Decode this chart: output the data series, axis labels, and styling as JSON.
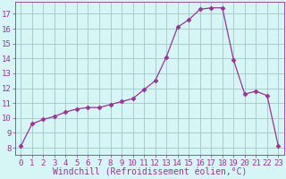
{
  "x": [
    0,
    1,
    2,
    3,
    4,
    5,
    6,
    7,
    8,
    9,
    10,
    11,
    12,
    13,
    14,
    15,
    16,
    17,
    18,
    19,
    20,
    21,
    22,
    23
  ],
  "y": [
    8.1,
    9.6,
    9.9,
    10.1,
    10.4,
    10.6,
    10.7,
    10.7,
    10.9,
    11.1,
    11.3,
    11.9,
    12.5,
    14.1,
    16.1,
    16.6,
    17.3,
    17.4,
    17.4,
    13.9,
    11.6,
    11.8,
    11.5,
    8.1
  ],
  "xlim": [
    -0.5,
    23.5
  ],
  "ylim": [
    7.5,
    17.8
  ],
  "xticks": [
    0,
    1,
    2,
    3,
    4,
    5,
    6,
    7,
    8,
    9,
    10,
    11,
    12,
    13,
    14,
    15,
    16,
    17,
    18,
    19,
    20,
    21,
    22,
    23
  ],
  "yticks": [
    8,
    9,
    10,
    11,
    12,
    13,
    14,
    15,
    16,
    17
  ],
  "line_color": "#993399",
  "marker": "D",
  "marker_size": 2.5,
  "bg_color": "#d6f5f5",
  "grid_color": "#aacccc",
  "xlabel": "Windchill (Refroidissement éolien,°C)",
  "xlabel_color": "#993399",
  "tick_color": "#993399",
  "xlabel_fontsize": 7,
  "tick_fontsize": 6.5
}
